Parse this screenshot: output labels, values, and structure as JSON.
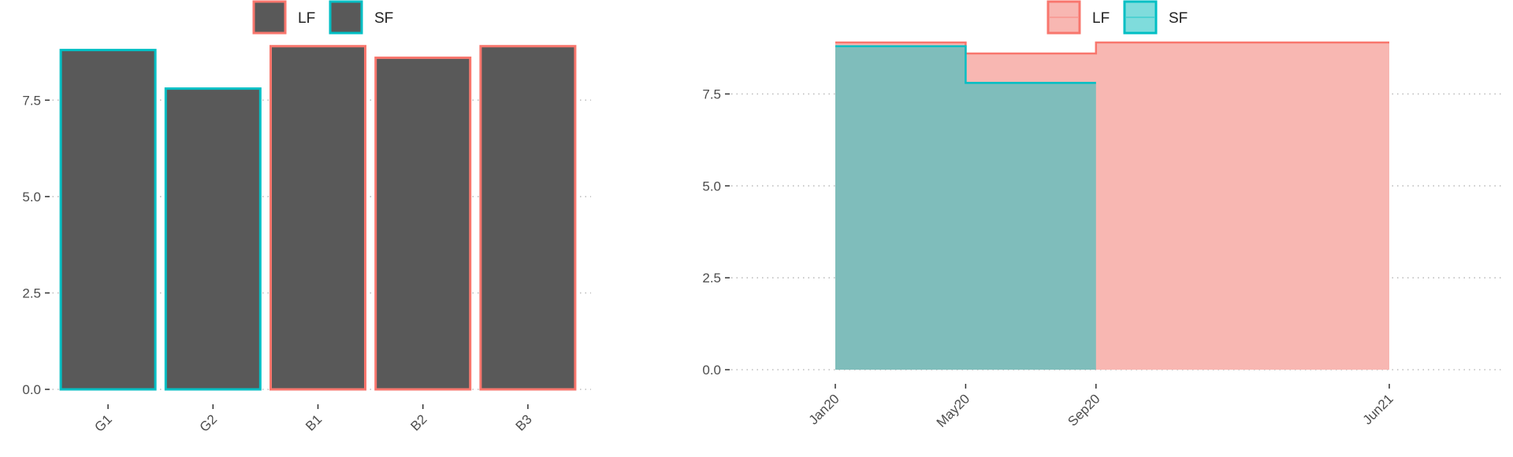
{
  "colors": {
    "lf": "#F8766D",
    "sf": "#00BFC4",
    "bar_fill": "#595959",
    "lf_area": "#F8B7B2",
    "sf_area": "#7FBDBB",
    "grid": "#BEBEBE",
    "text": "#4D4D4D"
  },
  "chart_data": [
    {
      "type": "bar",
      "categories": [
        "G1",
        "G2",
        "B1",
        "B2",
        "B3"
      ],
      "values": [
        8.8,
        7.8,
        8.9,
        8.6,
        8.9
      ],
      "groups": [
        "SF",
        "SF",
        "LF",
        "LF",
        "LF"
      ],
      "legend": [
        "LF",
        "SF"
      ],
      "legend_position": "top",
      "yticks": [
        "0.0",
        "2.5",
        "5.0",
        "7.5"
      ],
      "ylim": [
        0,
        9.2
      ],
      "grid": "horizontal-dotted",
      "xlabel": "",
      "ylabel": ""
    },
    {
      "type": "area",
      "step": true,
      "xticks": [
        "Jan20",
        "May20",
        "Sep20",
        "Jun21"
      ],
      "yticks": [
        "0.0",
        "2.5",
        "5.0",
        "7.5"
      ],
      "ylim": [
        0,
        9.2
      ],
      "legend": [
        "LF",
        "SF"
      ],
      "legend_position": "top",
      "grid": "horizontal-dotted",
      "series": [
        {
          "name": "LF",
          "x": [
            "Jan20",
            "May20",
            "Sep20",
            "Jun21"
          ],
          "values": [
            8.9,
            8.6,
            8.9,
            8.9
          ]
        },
        {
          "name": "SF",
          "x": [
            "Jan20",
            "May20",
            "Sep20"
          ],
          "values": [
            8.8,
            7.8,
            7.8
          ]
        }
      ],
      "xlabel": "",
      "ylabel": ""
    }
  ]
}
